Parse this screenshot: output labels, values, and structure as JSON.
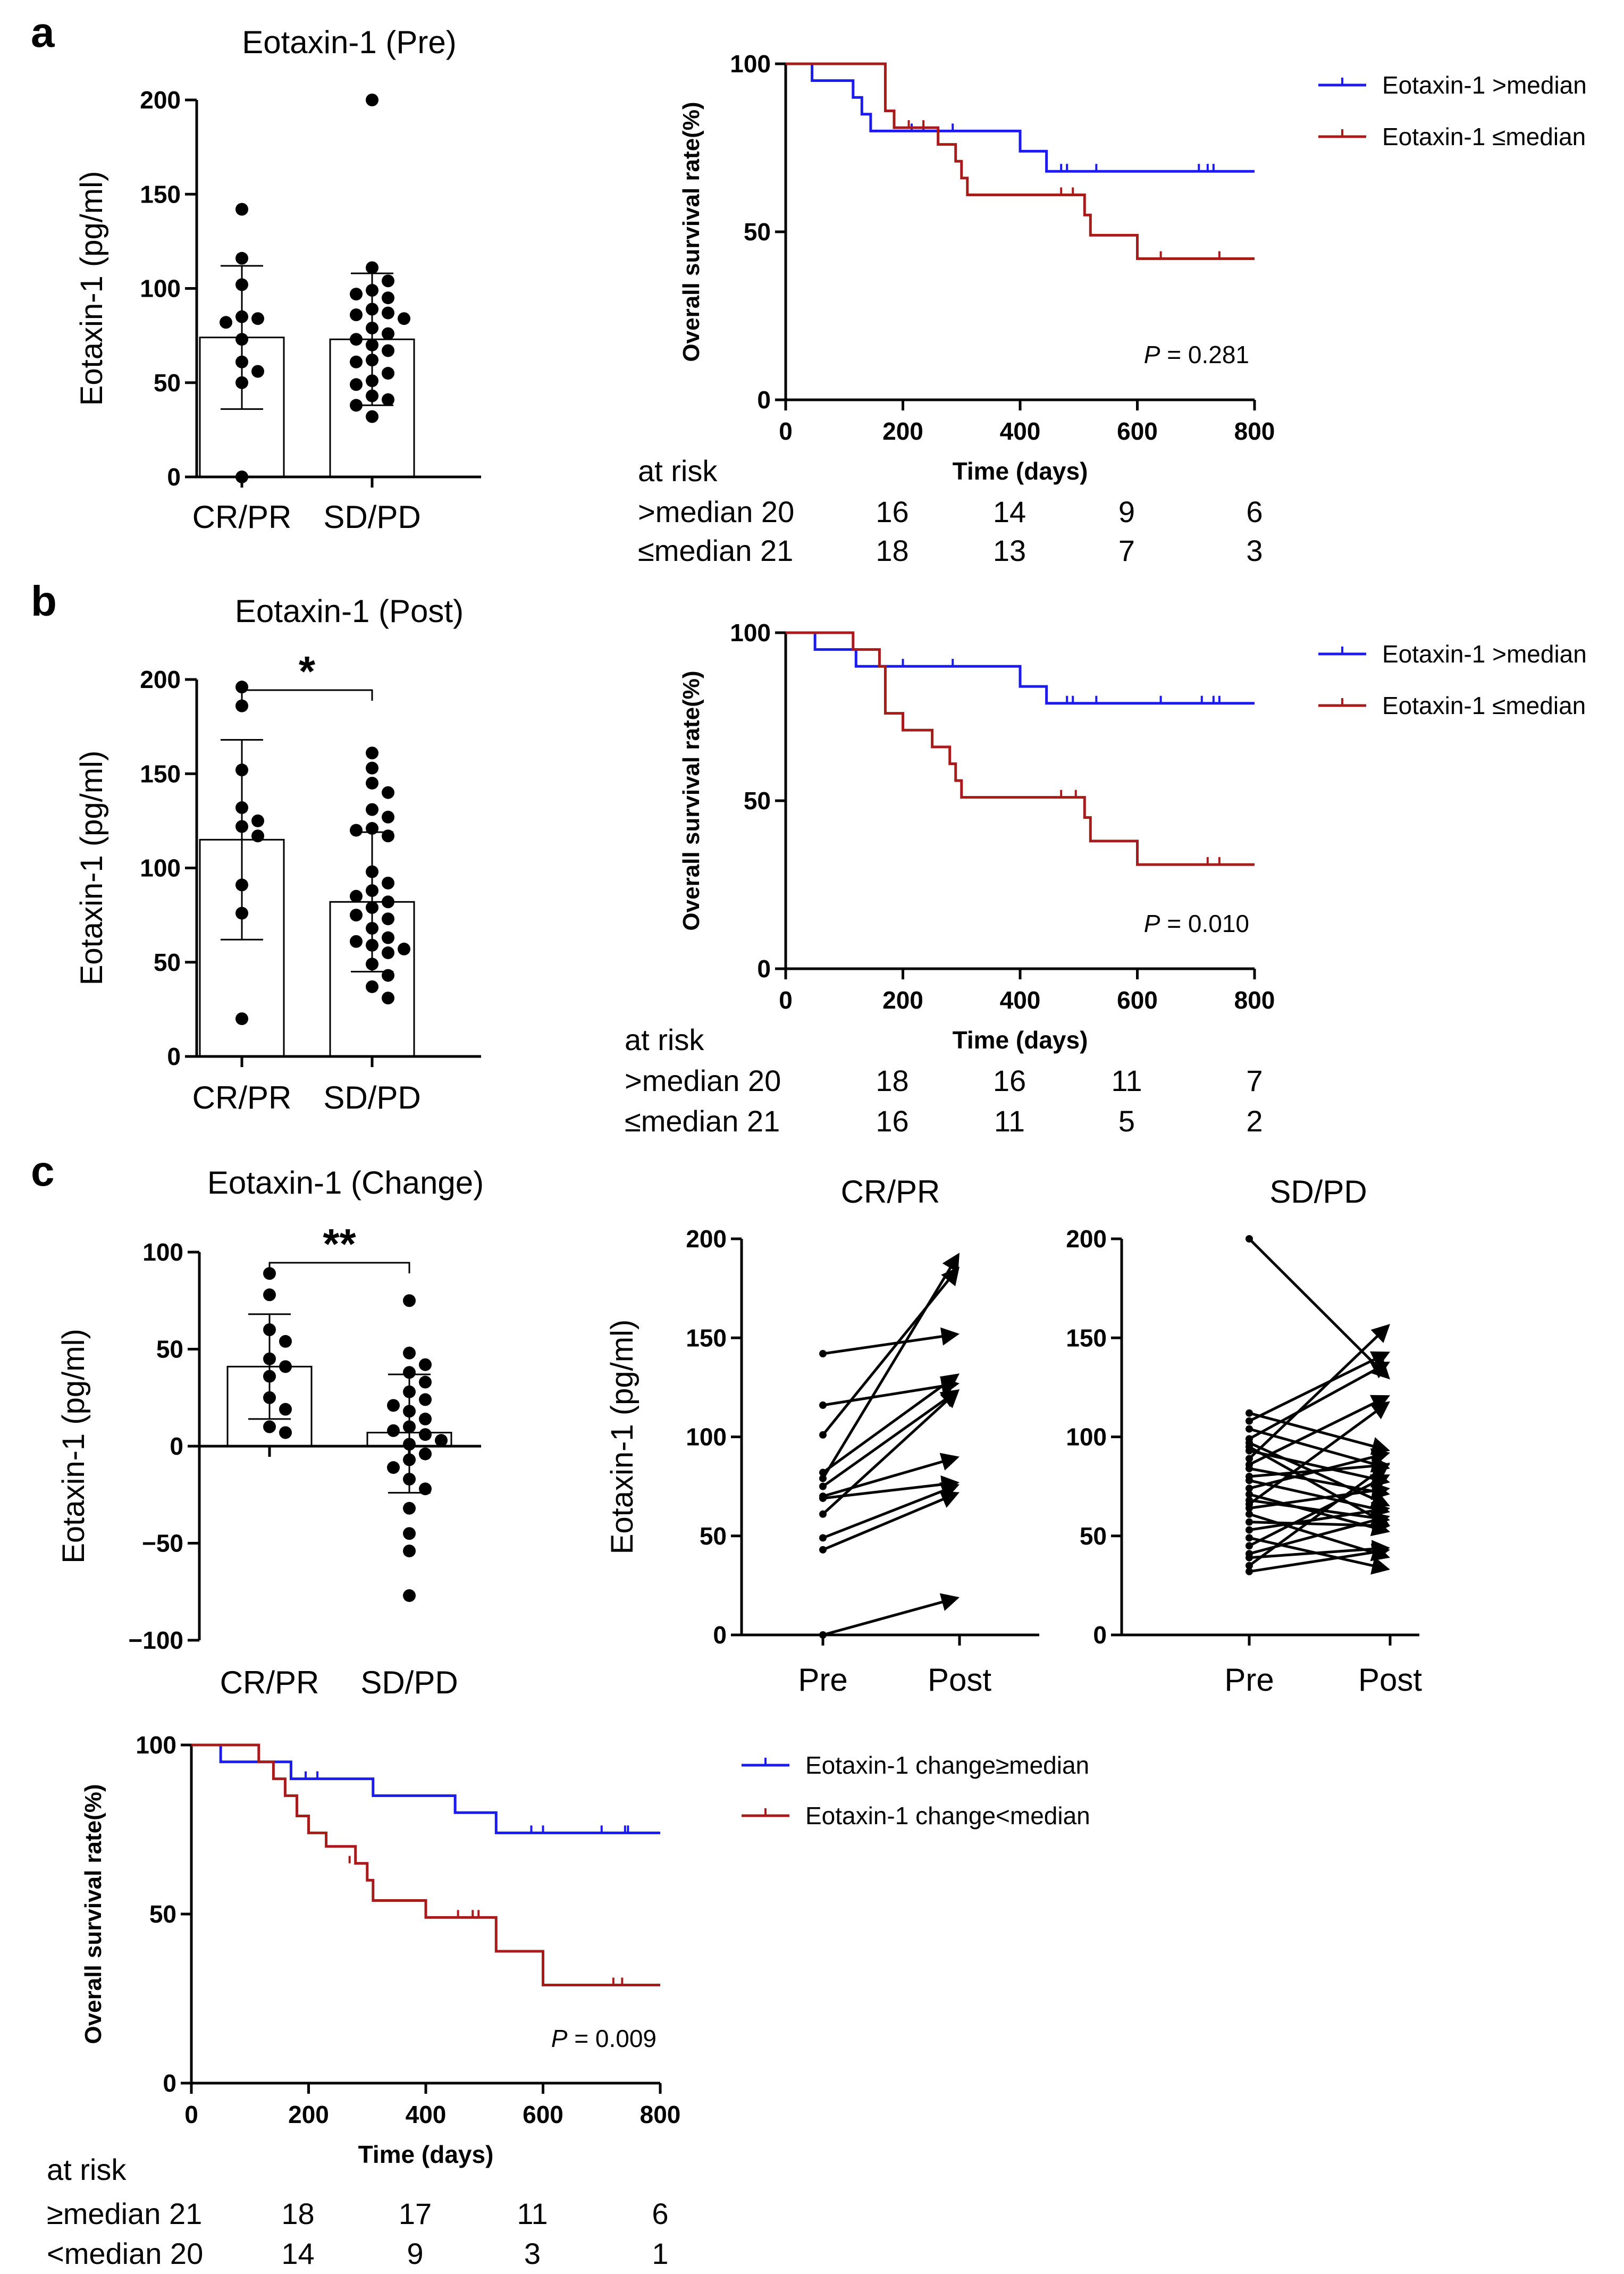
{
  "panels": {
    "a": "a",
    "b": "b",
    "c": "c"
  },
  "chart_data": [
    {
      "id": "a_bar",
      "type": "bar",
      "title": "Eotaxin-1 (Pre)",
      "ylabel": "Eotaxin-1 (pg/ml)",
      "xlabel": "",
      "categories": [
        "CR/PR",
        "SD/PD"
      ],
      "ylim": [
        0,
        200
      ],
      "yticks": [
        0,
        50,
        100,
        150,
        200
      ],
      "means": [
        74,
        73
      ],
      "sd_low": [
        36,
        38
      ],
      "sd_high": [
        112,
        108
      ],
      "points": [
        [
          142,
          116,
          102,
          85,
          84,
          82,
          73,
          61,
          56,
          50,
          0
        ],
        [
          200,
          111,
          104,
          99,
          97,
          95,
          89,
          87,
          86,
          84,
          79,
          76,
          73,
          70,
          67,
          62,
          61,
          55,
          51,
          49,
          43,
          41,
          38,
          32
        ]
      ],
      "significance": ""
    },
    {
      "id": "a_km",
      "type": "line",
      "title": "",
      "ylabel": "Overall survival rate(%)",
      "xlabel": "Time (days)",
      "xlim": [
        0,
        800
      ],
      "ylim": [
        0,
        100
      ],
      "xticks": [
        0,
        200,
        400,
        600,
        800
      ],
      "yticks": [
        0,
        50,
        100
      ],
      "series": [
        {
          "name": "Eotaxin-1 >median",
          "color": "#1b1bf0",
          "steps": [
            [
              0,
              100
            ],
            [
              45,
              95
            ],
            [
              115,
              90
            ],
            [
              130,
              85
            ],
            [
              145,
              80
            ],
            [
              400,
              74
            ],
            [
              445,
              68
            ],
            [
              800,
              68
            ]
          ],
          "censors": [
            [
              215,
              80
            ],
            [
              235,
              80
            ],
            [
              285,
              80
            ],
            [
              470,
              68
            ],
            [
              480,
              68
            ],
            [
              530,
              68
            ],
            [
              705,
              68
            ],
            [
              720,
              68
            ],
            [
              730,
              68
            ]
          ]
        },
        {
          "name": "Eotaxin-1 ≤median",
          "color": "#a81b1b",
          "steps": [
            [
              0,
              100
            ],
            [
              170,
              86
            ],
            [
              185,
              81
            ],
            [
              260,
              76
            ],
            [
              290,
              71
            ],
            [
              300,
              66
            ],
            [
              310,
              61
            ],
            [
              510,
              55
            ],
            [
              520,
              49
            ],
            [
              600,
              42
            ],
            [
              800,
              42
            ]
          ],
          "censors": [
            [
              210,
              81
            ],
            [
              235,
              81
            ],
            [
              470,
              61
            ],
            [
              490,
              61
            ],
            [
              640,
              42
            ],
            [
              740,
              42
            ]
          ]
        }
      ],
      "p_label": "P",
      "p_value": " = 0.281",
      "risk_header": "at risk",
      "risk_rows": [
        {
          "label": ">median 20",
          "values": [
            "16",
            "14",
            "9",
            "6"
          ]
        },
        {
          "label": "≤median 21",
          "values": [
            "18",
            "13",
            "7",
            "3"
          ]
        }
      ]
    },
    {
      "id": "b_bar",
      "type": "bar",
      "title": "Eotaxin-1 (Post)",
      "ylabel": "Eotaxin-1 (pg/ml)",
      "xlabel": "",
      "categories": [
        "CR/PR",
        "SD/PD"
      ],
      "ylim": [
        0,
        200
      ],
      "yticks": [
        0,
        50,
        100,
        150,
        200
      ],
      "means": [
        115,
        82
      ],
      "sd_low": [
        62,
        45
      ],
      "sd_high": [
        168,
        119
      ],
      "points": [
        [
          196,
          186,
          152,
          132,
          125,
          122,
          117,
          91,
          76,
          20
        ],
        [
          161,
          153,
          145,
          140,
          131,
          127,
          121,
          120,
          117,
          98,
          92,
          88,
          85,
          82,
          79,
          75,
          73,
          68,
          63,
          61,
          59,
          57,
          55,
          49,
          43,
          37,
          31
        ]
      ],
      "significance": "*"
    },
    {
      "id": "b_km",
      "type": "line",
      "title": "",
      "ylabel": "Overall survival rate(%)",
      "xlabel": "Time (days)",
      "xlim": [
        0,
        800
      ],
      "ylim": [
        0,
        100
      ],
      "xticks": [
        0,
        200,
        400,
        600,
        800
      ],
      "yticks": [
        0,
        50,
        100
      ],
      "series": [
        {
          "name": "Eotaxin-1 >median",
          "color": "#1b1bf0",
          "steps": [
            [
              0,
              100
            ],
            [
              50,
              95
            ],
            [
              120,
              90
            ],
            [
              400,
              84
            ],
            [
              445,
              79
            ],
            [
              800,
              79
            ]
          ],
          "censors": [
            [
              200,
              90
            ],
            [
              285,
              90
            ],
            [
              480,
              79
            ],
            [
              490,
              79
            ],
            [
              530,
              79
            ],
            [
              640,
              79
            ],
            [
              710,
              79
            ],
            [
              730,
              79
            ],
            [
              740,
              79
            ]
          ]
        },
        {
          "name": "Eotaxin-1 ≤median",
          "color": "#a81b1b",
          "steps": [
            [
              0,
              100
            ],
            [
              115,
              95
            ],
            [
              160,
              90
            ],
            [
              170,
              76
            ],
            [
              200,
              71
            ],
            [
              250,
              66
            ],
            [
              280,
              61
            ],
            [
              290,
              56
            ],
            [
              300,
              51
            ],
            [
              510,
              45
            ],
            [
              520,
              38
            ],
            [
              600,
              31
            ],
            [
              800,
              31
            ]
          ],
          "censors": [
            [
              470,
              51
            ],
            [
              495,
              51
            ],
            [
              720,
              31
            ],
            [
              740,
              31
            ]
          ]
        }
      ],
      "p_label": "P",
      "p_value": " = 0.010",
      "risk_header": "at risk",
      "risk_rows": [
        {
          "label": ">median 20",
          "values": [
            "18",
            "16",
            "11",
            "7"
          ]
        },
        {
          "label": "≤median 21",
          "values": [
            "16",
            "11",
            "5",
            "2"
          ]
        }
      ]
    },
    {
      "id": "c_bar",
      "type": "bar",
      "title": "Eotaxin-1 (Change)",
      "ylabel": "Eotaxin-1 (pg/ml)",
      "xlabel": "",
      "categories": [
        "CR/PR",
        "SD/PD"
      ],
      "ylim": [
        -100,
        100
      ],
      "yticks": [
        -100,
        -50,
        0,
        50,
        100
      ],
      "ytick_labels": [
        "−100",
        "−50",
        "0",
        "50",
        "100"
      ],
      "means": [
        41,
        7
      ],
      "sd_low": [
        14,
        -24
      ],
      "sd_high": [
        68,
        37
      ],
      "points": [
        [
          89,
          78,
          60,
          54,
          45,
          41,
          36,
          25,
          19,
          10,
          7
        ],
        [
          75,
          48,
          42,
          38,
          33,
          28,
          24,
          21,
          18,
          14,
          10,
          8,
          6,
          3,
          1,
          -4,
          -7,
          -11,
          -17,
          -22,
          -32,
          -45,
          -54,
          -77
        ]
      ],
      "significance": "**"
    },
    {
      "id": "c_pair_crpr",
      "type": "line",
      "title": "CR/PR",
      "ylabel": "Eotaxin-1 (pg/ml)",
      "xlabel": "",
      "categories": [
        "Pre",
        "Post"
      ],
      "ylim": [
        0,
        200
      ],
      "yticks": [
        0,
        50,
        100,
        150,
        200
      ],
      "pairs": [
        [
          142,
          152
        ],
        [
          116,
          127
        ],
        [
          101,
          186
        ],
        [
          82,
          132
        ],
        [
          79,
          193
        ],
        [
          75,
          124
        ],
        [
          70,
          90
        ],
        [
          69,
          77
        ],
        [
          61,
          124
        ],
        [
          49,
          76
        ],
        [
          43,
          72
        ],
        [
          0,
          19
        ]
      ]
    },
    {
      "id": "c_pair_sdpd",
      "type": "line",
      "title": "SD/PD",
      "ylabel": "",
      "xlabel": "",
      "categories": [
        "Pre",
        "Post"
      ],
      "ylim": [
        0,
        200
      ],
      "yticks": [
        0,
        50,
        100,
        150,
        200
      ],
      "pairs": [
        [
          200,
          129
        ],
        [
          112,
          93
        ],
        [
          108,
          143
        ],
        [
          104,
          84
        ],
        [
          99,
          138
        ],
        [
          97,
          65
        ],
        [
          95,
          55
        ],
        [
          93,
          77
        ],
        [
          89,
          157
        ],
        [
          86,
          121
        ],
        [
          84,
          71
        ],
        [
          80,
          86
        ],
        [
          78,
          62
        ],
        [
          74,
          92
        ],
        [
          71,
          52
        ],
        [
          68,
          58
        ],
        [
          66,
          118
        ],
        [
          64,
          74
        ],
        [
          61,
          39
        ],
        [
          57,
          55
        ],
        [
          53,
          64
        ],
        [
          49,
          33
        ],
        [
          45,
          81
        ],
        [
          41,
          60
        ],
        [
          39,
          44
        ],
        [
          35,
          87
        ],
        [
          32,
          43
        ]
      ]
    },
    {
      "id": "c_km",
      "type": "line",
      "title": "",
      "ylabel": "Overall survival rate(%)",
      "xlabel": "Time (days)",
      "xlim": [
        0,
        800
      ],
      "ylim": [
        0,
        100
      ],
      "xticks": [
        0,
        200,
        400,
        600,
        800
      ],
      "yticks": [
        0,
        50,
        100
      ],
      "series": [
        {
          "name": "Eotaxin-1 change≥median",
          "color": "#1b1bf0",
          "steps": [
            [
              0,
              100
            ],
            [
              50,
              95
            ],
            [
              170,
              90
            ],
            [
              310,
              85
            ],
            [
              450,
              80
            ],
            [
              520,
              74
            ],
            [
              800,
              74
            ]
          ],
          "censors": [
            [
              195,
              90
            ],
            [
              215,
              90
            ],
            [
              580,
              74
            ],
            [
              600,
              74
            ],
            [
              700,
              74
            ],
            [
              740,
              74
            ],
            [
              745,
              74
            ]
          ]
        },
        {
          "name": "Eotaxin-1 change<median",
          "color": "#a81b1b",
          "steps": [
            [
              0,
              100
            ],
            [
              115,
              95
            ],
            [
              140,
              90
            ],
            [
              160,
              85
            ],
            [
              180,
              79
            ],
            [
              200,
              74
            ],
            [
              230,
              70
            ],
            [
              280,
              65
            ],
            [
              300,
              60
            ],
            [
              310,
              54
            ],
            [
              400,
              49
            ],
            [
              520,
              39
            ],
            [
              600,
              29
            ],
            [
              800,
              29
            ]
          ],
          "censors": [
            [
              270,
              65
            ],
            [
              455,
              49
            ],
            [
              480,
              49
            ],
            [
              490,
              49
            ],
            [
              720,
              29
            ],
            [
              735,
              29
            ]
          ]
        }
      ],
      "p_label": "P",
      "p_value": " = 0.009",
      "risk_header": "at risk",
      "risk_rows": [
        {
          "label": "≥median 21",
          "values": [
            "18",
            "17",
            "11",
            "6"
          ]
        },
        {
          "label": "<median 20",
          "values": [
            "14",
            "9",
            "3",
            "1"
          ]
        }
      ]
    }
  ]
}
